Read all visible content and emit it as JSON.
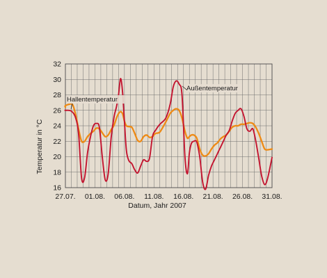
{
  "chart_data": {
    "type": "line",
    "xlabel": "Datum, Jahr 2007",
    "ylabel": "Temperatur in °C",
    "ylim": [
      16,
      32
    ],
    "xlim": [
      "27.07.",
      "31.08."
    ],
    "grid": true,
    "y_ticks": [
      16,
      18,
      20,
      22,
      24,
      26,
      28,
      30,
      32
    ],
    "x_ticks": [
      "27.07.",
      "01.08.",
      "06.08.",
      "11.08.",
      "16.08.",
      "21.08.",
      "26.08.",
      "31.08."
    ],
    "colors": {
      "background": "#e5ddd0",
      "grid": "#6e6e6e",
      "series_outdoor": "#c3142f",
      "series_hall": "#ee8a14"
    },
    "annotations": [
      {
        "text": "Hallentemperatur",
        "series": "Hallentemperatur"
      },
      {
        "text": "Außentemperatur",
        "series": "Außentemperatur"
      }
    ],
    "series": [
      {
        "name": "Außentemperatur",
        "color": "#c3142f",
        "points": [
          [
            "27.07.",
            26.0
          ],
          [
            "27.07.",
            26.0
          ],
          [
            "28.07.",
            25.9
          ],
          [
            "29.07.",
            25.0
          ],
          [
            "29.07.",
            22.8
          ],
          [
            "30.07.",
            17.2
          ],
          [
            "30.07.",
            17.3
          ],
          [
            "31.07.",
            20.5
          ],
          [
            "31.07.",
            22.6
          ],
          [
            "01.08.",
            24.0
          ],
          [
            "01.08.",
            24.3
          ],
          [
            "02.08.",
            23.8
          ],
          [
            "02.08.",
            20.0
          ],
          [
            "03.08.",
            17.0
          ],
          [
            "03.08.",
            17.8
          ],
          [
            "04.08.",
            22.5
          ],
          [
            "04.08.",
            25.2
          ],
          [
            "05.08.",
            26.5
          ],
          [
            "05.08.",
            28.0
          ],
          [
            "05.08.",
            30.1
          ],
          [
            "06.08.",
            28.5
          ],
          [
            "06.08.",
            24.5
          ],
          [
            "06.08.",
            20.8
          ],
          [
            "07.08.",
            19.5
          ],
          [
            "07.08.",
            19.1
          ],
          [
            "08.08.",
            18.3
          ],
          [
            "08.08.",
            17.9
          ],
          [
            "09.08.",
            18.8
          ],
          [
            "09.08.",
            19.6
          ],
          [
            "10.08.",
            19.4
          ],
          [
            "10.08.",
            19.8
          ],
          [
            "11.08.",
            22.6
          ],
          [
            "11.08.",
            23.4
          ],
          [
            "12.08.",
            24.2
          ],
          [
            "13.08.",
            25.0
          ],
          [
            "14.08.",
            26.8
          ],
          [
            "14.08.",
            29.0
          ],
          [
            "15.08.",
            29.8
          ],
          [
            "15.08.",
            29.4
          ],
          [
            "16.08.",
            28.0
          ],
          [
            "16.08.",
            20.0
          ],
          [
            "17.08.",
            17.8
          ],
          [
            "17.08.",
            20.5
          ],
          [
            "17.08.",
            21.7
          ],
          [
            "18.08.",
            22.0
          ],
          [
            "18.08.",
            21.9
          ],
          [
            "19.08.",
            20.0
          ],
          [
            "19.08.",
            16.7
          ],
          [
            "20.08.",
            15.8
          ],
          [
            "20.08.",
            17.6
          ],
          [
            "21.08.",
            18.8
          ],
          [
            "21.08.",
            19.6
          ],
          [
            "22.08.",
            20.4
          ],
          [
            "22.08.",
            21.2
          ],
          [
            "23.08.",
            22.0
          ],
          [
            "23.08.",
            22.8
          ],
          [
            "24.08.",
            23.4
          ],
          [
            "24.08.",
            24.6
          ],
          [
            "25.08.",
            25.6
          ],
          [
            "25.08.",
            26.0
          ],
          [
            "26.08.",
            26.2
          ],
          [
            "26.08.",
            25.2
          ],
          [
            "27.08.",
            23.6
          ],
          [
            "27.08.",
            23.3
          ],
          [
            "28.08.",
            23.6
          ],
          [
            "28.08.",
            22.0
          ],
          [
            "29.08.",
            19.8
          ],
          [
            "29.08.",
            17.5
          ],
          [
            "30.08.",
            16.4
          ],
          [
            "30.08.",
            17.2
          ],
          [
            "31.08.",
            19.9
          ]
        ]
      },
      {
        "name": "Hallentemperatur",
        "color": "#ee8a14",
        "points": [
          [
            "27.07.",
            26.4
          ],
          [
            "27.07.",
            26.6
          ],
          [
            "28.07.",
            26.8
          ],
          [
            "28.07.",
            26.7
          ],
          [
            "29.07.",
            25.4
          ],
          [
            "29.07.",
            23.5
          ],
          [
            "30.07.",
            22.0
          ],
          [
            "30.07.",
            22.0
          ],
          [
            "31.07.",
            22.6
          ],
          [
            "31.07.",
            23.0
          ],
          [
            "01.08.",
            23.3
          ],
          [
            "01.08.",
            23.7
          ],
          [
            "02.08.",
            23.6
          ],
          [
            "02.08.",
            23.1
          ],
          [
            "03.08.",
            22.6
          ],
          [
            "03.08.",
            22.8
          ],
          [
            "04.08.",
            23.5
          ],
          [
            "04.08.",
            24.1
          ],
          [
            "05.08.",
            25.2
          ],
          [
            "05.08.",
            25.8
          ],
          [
            "06.08.",
            25.6
          ],
          [
            "06.08.",
            24.6
          ],
          [
            "06.08.",
            24.0
          ],
          [
            "07.08.",
            23.9
          ],
          [
            "07.08.",
            23.8
          ],
          [
            "08.08.",
            23.0
          ],
          [
            "08.08.",
            22.1
          ],
          [
            "09.08.",
            22.0
          ],
          [
            "09.08.",
            22.6
          ],
          [
            "10.08.",
            22.8
          ],
          [
            "10.08.",
            22.5
          ],
          [
            "11.08.",
            22.6
          ],
          [
            "11.08.",
            23.0
          ],
          [
            "12.08.",
            23.2
          ],
          [
            "13.08.",
            24.5
          ],
          [
            "14.08.",
            25.6
          ],
          [
            "14.08.",
            26.0
          ],
          [
            "15.08.",
            26.2
          ],
          [
            "15.08.",
            26.0
          ],
          [
            "16.08.",
            25.0
          ],
          [
            "16.08.",
            23.3
          ],
          [
            "17.08.",
            22.4
          ],
          [
            "17.08.",
            22.6
          ],
          [
            "17.08.",
            22.8
          ],
          [
            "18.08.",
            22.8
          ],
          [
            "18.08.",
            22.4
          ],
          [
            "19.08.",
            21.0
          ],
          [
            "19.08.",
            20.2
          ],
          [
            "20.08.",
            20.1
          ],
          [
            "20.08.",
            20.4
          ],
          [
            "21.08.",
            21.0
          ],
          [
            "21.08.",
            21.5
          ],
          [
            "22.08.",
            21.8
          ],
          [
            "22.08.",
            22.3
          ],
          [
            "23.08.",
            22.6
          ],
          [
            "23.08.",
            22.8
          ],
          [
            "24.08.",
            23.3
          ],
          [
            "24.08.",
            23.8
          ],
          [
            "25.08.",
            24.0
          ],
          [
            "25.08.",
            24.0
          ],
          [
            "26.08.",
            24.2
          ],
          [
            "26.08.",
            24.2
          ],
          [
            "27.08.",
            24.3
          ],
          [
            "27.08.",
            24.4
          ],
          [
            "28.08.",
            24.3
          ],
          [
            "28.08.",
            23.8
          ],
          [
            "29.08.",
            23.0
          ],
          [
            "29.08.",
            22.0
          ],
          [
            "30.08.",
            21.0
          ],
          [
            "30.08.",
            20.9
          ],
          [
            "31.08.",
            21.0
          ]
        ]
      }
    ]
  }
}
